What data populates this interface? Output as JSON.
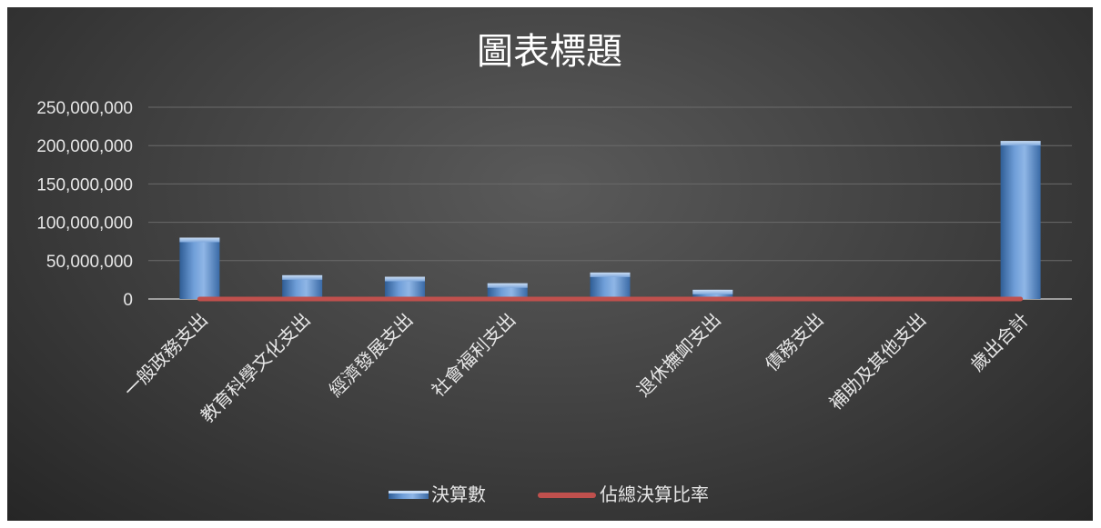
{
  "chart_data": {
    "type": "bar",
    "title": "圖表標題",
    "xlabel": "",
    "ylabel": "",
    "categories": [
      "一般政務支出",
      "教育科學文化支出",
      "經濟發展支出",
      "社會福利支出",
      "",
      "退休撫卹支出",
      "債務支出",
      "補助及其他支出",
      "歲出合計"
    ],
    "series": [
      {
        "name": "決算數",
        "type": "bar",
        "color": "#4f81bd",
        "values": [
          80000000,
          31000000,
          29000000,
          20500000,
          34500000,
          12000000,
          0,
          0,
          206000000
        ]
      },
      {
        "name": "佔總決算比率",
        "type": "line",
        "color": "#c0504d",
        "values": [
          0.39,
          0.15,
          0.14,
          0.1,
          0.17,
          0.06,
          0,
          0,
          1
        ]
      }
    ],
    "ylim": [
      0,
      250000000
    ],
    "yticks": [
      0,
      50000000,
      100000000,
      150000000,
      200000000,
      250000000
    ],
    "ytick_labels": [
      "0",
      "50,000,000",
      "100,000,000",
      "150,000,000",
      "200,000,000",
      "250,000,000"
    ],
    "grid": true,
    "legend": "bottom-center"
  }
}
